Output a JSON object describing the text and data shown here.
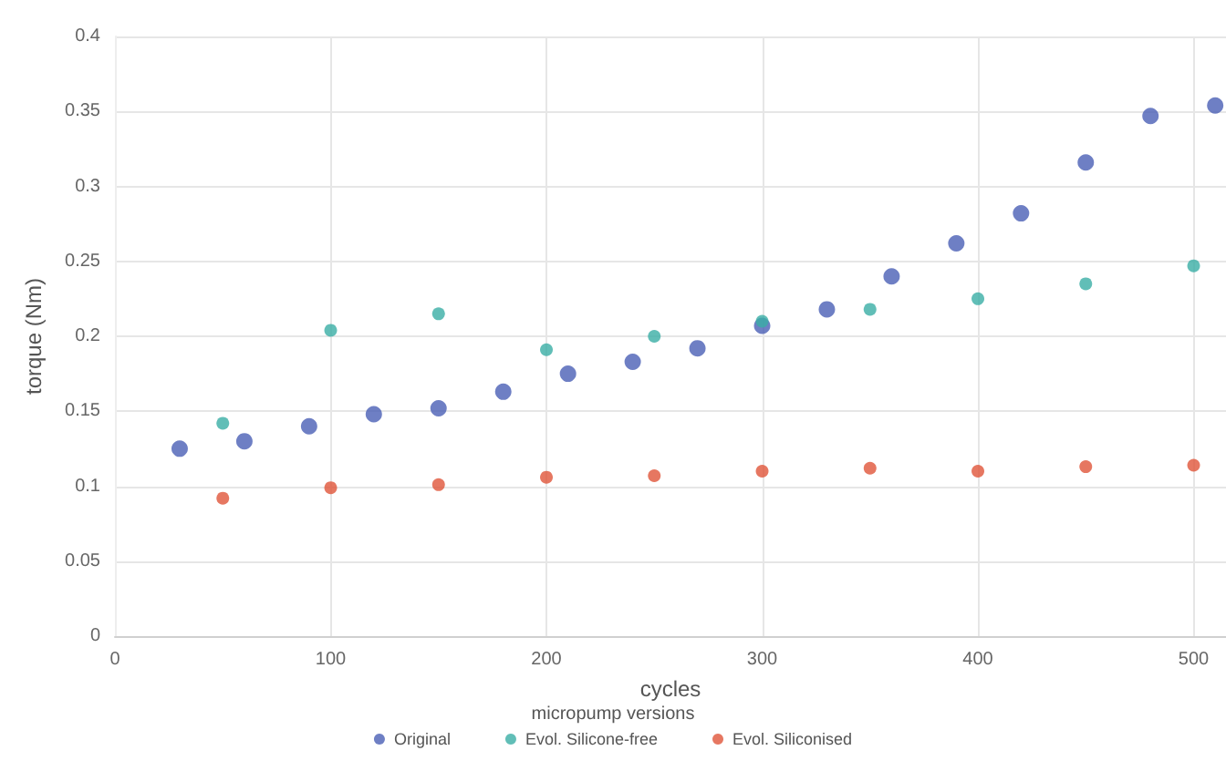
{
  "chart_data": {
    "type": "scatter",
    "xlabel": "cycles",
    "ylabel": "torque (Nm)",
    "legend_title": "micropump versions",
    "xlim": [
      0,
      515
    ],
    "xticks": [
      0,
      100,
      200,
      300,
      400,
      500
    ],
    "ylim": [
      0,
      0.4
    ],
    "yticks": [
      0,
      0.05,
      0.1,
      0.15,
      0.2,
      0.25,
      0.3,
      0.35,
      0.4
    ],
    "grid": true,
    "legend": "bottom",
    "marker": "circle",
    "series": [
      {
        "name": "Original",
        "color": "#4a5fb5",
        "x": [
          30,
          60,
          90,
          120,
          150,
          180,
          210,
          240,
          270,
          300,
          330,
          360,
          390,
          420,
          450,
          480,
          510
        ],
        "values": [
          0.125,
          0.13,
          0.14,
          0.148,
          0.152,
          0.163,
          0.175,
          0.183,
          0.192,
          0.207,
          0.218,
          0.24,
          0.262,
          0.282,
          0.316,
          0.347,
          0.354
        ]
      },
      {
        "name": "Evol. Silicone-free",
        "color": "#3aaea5",
        "x": [
          50,
          100,
          150,
          200,
          250,
          300,
          350,
          400,
          450,
          500
        ],
        "values": [
          0.142,
          0.204,
          0.215,
          0.191,
          0.2,
          0.21,
          0.218,
          0.225,
          0.235,
          0.247
        ]
      },
      {
        "name": "Evol. Siliconised",
        "color": "#e0553a",
        "x": [
          50,
          100,
          150,
          200,
          250,
          300,
          350,
          400,
          450,
          500
        ],
        "values": [
          0.092,
          0.099,
          0.101,
          0.106,
          0.107,
          0.11,
          0.112,
          0.11,
          0.113,
          0.114
        ]
      }
    ]
  }
}
